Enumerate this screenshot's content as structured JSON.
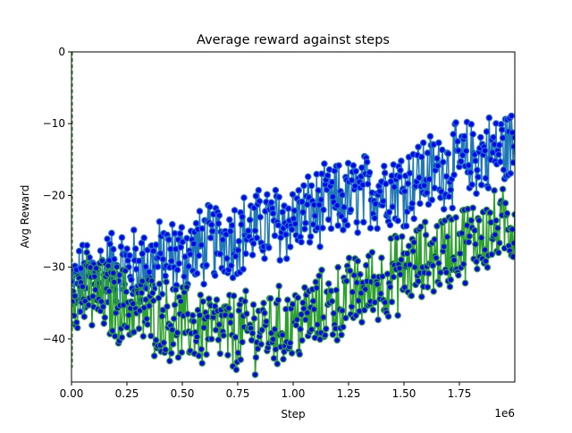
{
  "chart_data": {
    "type": "scatter",
    "title": "Average reward against steps",
    "xlabel": "Step",
    "ylabel": "Avg Reward",
    "x_offset_label": "1e6",
    "xlim": [
      0,
      2000000
    ],
    "ylim": [
      -46,
      0
    ],
    "x_ticks": [
      0,
      250000,
      500000,
      750000,
      1000000,
      1250000,
      1500000,
      1750000
    ],
    "x_tick_labels": [
      "0.00",
      "0.25",
      "0.50",
      "0.75",
      "1.00",
      "1.25",
      "1.50",
      "1.75"
    ],
    "y_ticks": [
      0,
      -10,
      -20,
      -30,
      -40
    ],
    "y_tick_labels": [
      "0",
      "−10",
      "−20",
      "−30",
      "−40"
    ],
    "grid": false,
    "legend": "none",
    "marker": {
      "face": "#0000ff",
      "edge": "#1f77b4"
    },
    "series": [
      {
        "line_color": "#1f77b4",
        "marker_face": "#0000ff",
        "marker_edge": "#1f77b4",
        "x": [
          0,
          100000,
          200000,
          300000,
          400000,
          500000,
          600000,
          700000,
          800000,
          900000,
          1000000,
          1100000,
          1200000,
          1300000,
          1400000,
          1500000,
          1600000,
          1700000,
          1800000,
          1900000,
          2000000
        ],
        "y_center": [
          -33,
          -31,
          -30,
          -30,
          -29,
          -28.5,
          -27,
          -26,
          -25,
          -24,
          -23.5,
          -22,
          -21,
          -20,
          -19,
          -18.5,
          -17,
          -16,
          -15,
          -14,
          -13
        ],
        "y_spread": 5
      },
      {
        "line_color": "#2ca02c",
        "marker_face": "#0000ff",
        "marker_edge": "#2ca02c",
        "x": [
          0,
          100000,
          200000,
          300000,
          400000,
          500000,
          600000,
          700000,
          800000,
          900000,
          1000000,
          1100000,
          1200000,
          1300000,
          1400000,
          1500000,
          1600000,
          1700000,
          1800000,
          1900000,
          2000000
        ],
        "y_center": [
          -33,
          -34,
          -35,
          -36,
          -37,
          -38,
          -38.5,
          -39,
          -39,
          -38.5,
          -38,
          -36.5,
          -35,
          -33.5,
          -32,
          -30.5,
          -29,
          -27.5,
          -26,
          -25,
          -24
        ],
        "y_spread": 5
      }
    ]
  }
}
